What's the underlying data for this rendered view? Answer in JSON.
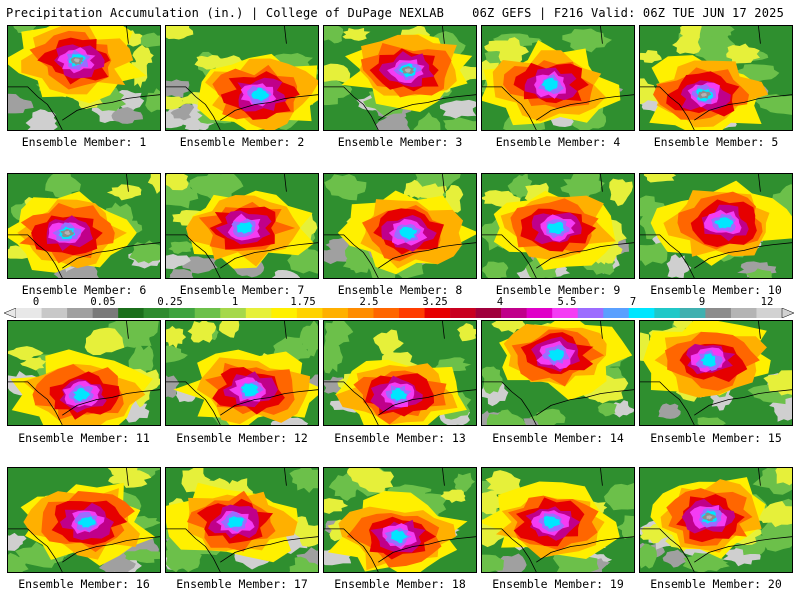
{
  "header": {
    "title": "Precipitation Accumulation (in.) | College of DuPage NEXLAB",
    "run_info": "06Z GEFS | F216 Valid: 06Z TUE JUN 17 2025"
  },
  "map_data": {
    "variable": "Precipitation Accumulation",
    "units": "in.",
    "model": "GEFS",
    "run": "06Z",
    "forecast_hour": "F216",
    "valid": "06Z TUE JUN 17 2025",
    "source": "College of DuPage NEXLAB",
    "color_scale": {
      "labels": [
        "0",
        "0.05",
        "0.25",
        "1",
        "1.75",
        "2.5",
        "3.25",
        "4",
        "5.5",
        "7",
        "9",
        "12"
      ],
      "colors": [
        "#e8e8e8",
        "#c8c8c8",
        "#a0a0a0",
        "#7a7a7a",
        "#1b6e1b",
        "#2e8b2e",
        "#3fa33f",
        "#6cc04a",
        "#a6d84a",
        "#e6f03a",
        "#fff000",
        "#ffd200",
        "#ffb000",
        "#ff8c00",
        "#ff6600",
        "#ff3c00",
        "#e60000",
        "#c80020",
        "#a0003c",
        "#c0008a",
        "#e000c8",
        "#f43cf4",
        "#9c6cff",
        "#5aa0ff",
        "#00e6ff",
        "#20c8c8",
        "#40b0b0",
        "#8c8c8c",
        "#b4b4b4",
        "#d2d2d2"
      ]
    },
    "members": [
      {
        "label": "Ensemble Member: 1",
        "max": 9.0
      },
      {
        "label": "Ensemble Member: 2",
        "max": 7.0
      },
      {
        "label": "Ensemble Member: 3",
        "max": 10.0
      },
      {
        "label": "Ensemble Member: 4",
        "max": 7.0
      },
      {
        "label": "Ensemble Member: 5",
        "max": 8.0
      },
      {
        "label": "Ensemble Member: 6",
        "max": 8.0
      },
      {
        "label": "Ensemble Member: 7",
        "max": 7.0
      },
      {
        "label": "Ensemble Member: 8",
        "max": 7.0
      },
      {
        "label": "Ensemble Member: 9",
        "max": 7.5
      },
      {
        "label": "Ensemble Member: 10",
        "max": 7.5
      },
      {
        "label": "Ensemble Member: 11",
        "max": 7.0
      },
      {
        "label": "Ensemble Member: 12",
        "max": 7.0
      },
      {
        "label": "Ensemble Member: 13",
        "max": 5.5
      },
      {
        "label": "Ensemble Member: 14",
        "max": 7.0
      },
      {
        "label": "Ensemble Member: 15",
        "max": 7.0
      },
      {
        "label": "Ensemble Member: 16",
        "max": 7.0
      },
      {
        "label": "Ensemble Member: 17",
        "max": 7.0
      },
      {
        "label": "Ensemble Member: 18",
        "max": 7.0
      },
      {
        "label": "Ensemble Member: 19",
        "max": 7.0
      },
      {
        "label": "Ensemble Member: 20",
        "max": 9.0
      }
    ]
  }
}
